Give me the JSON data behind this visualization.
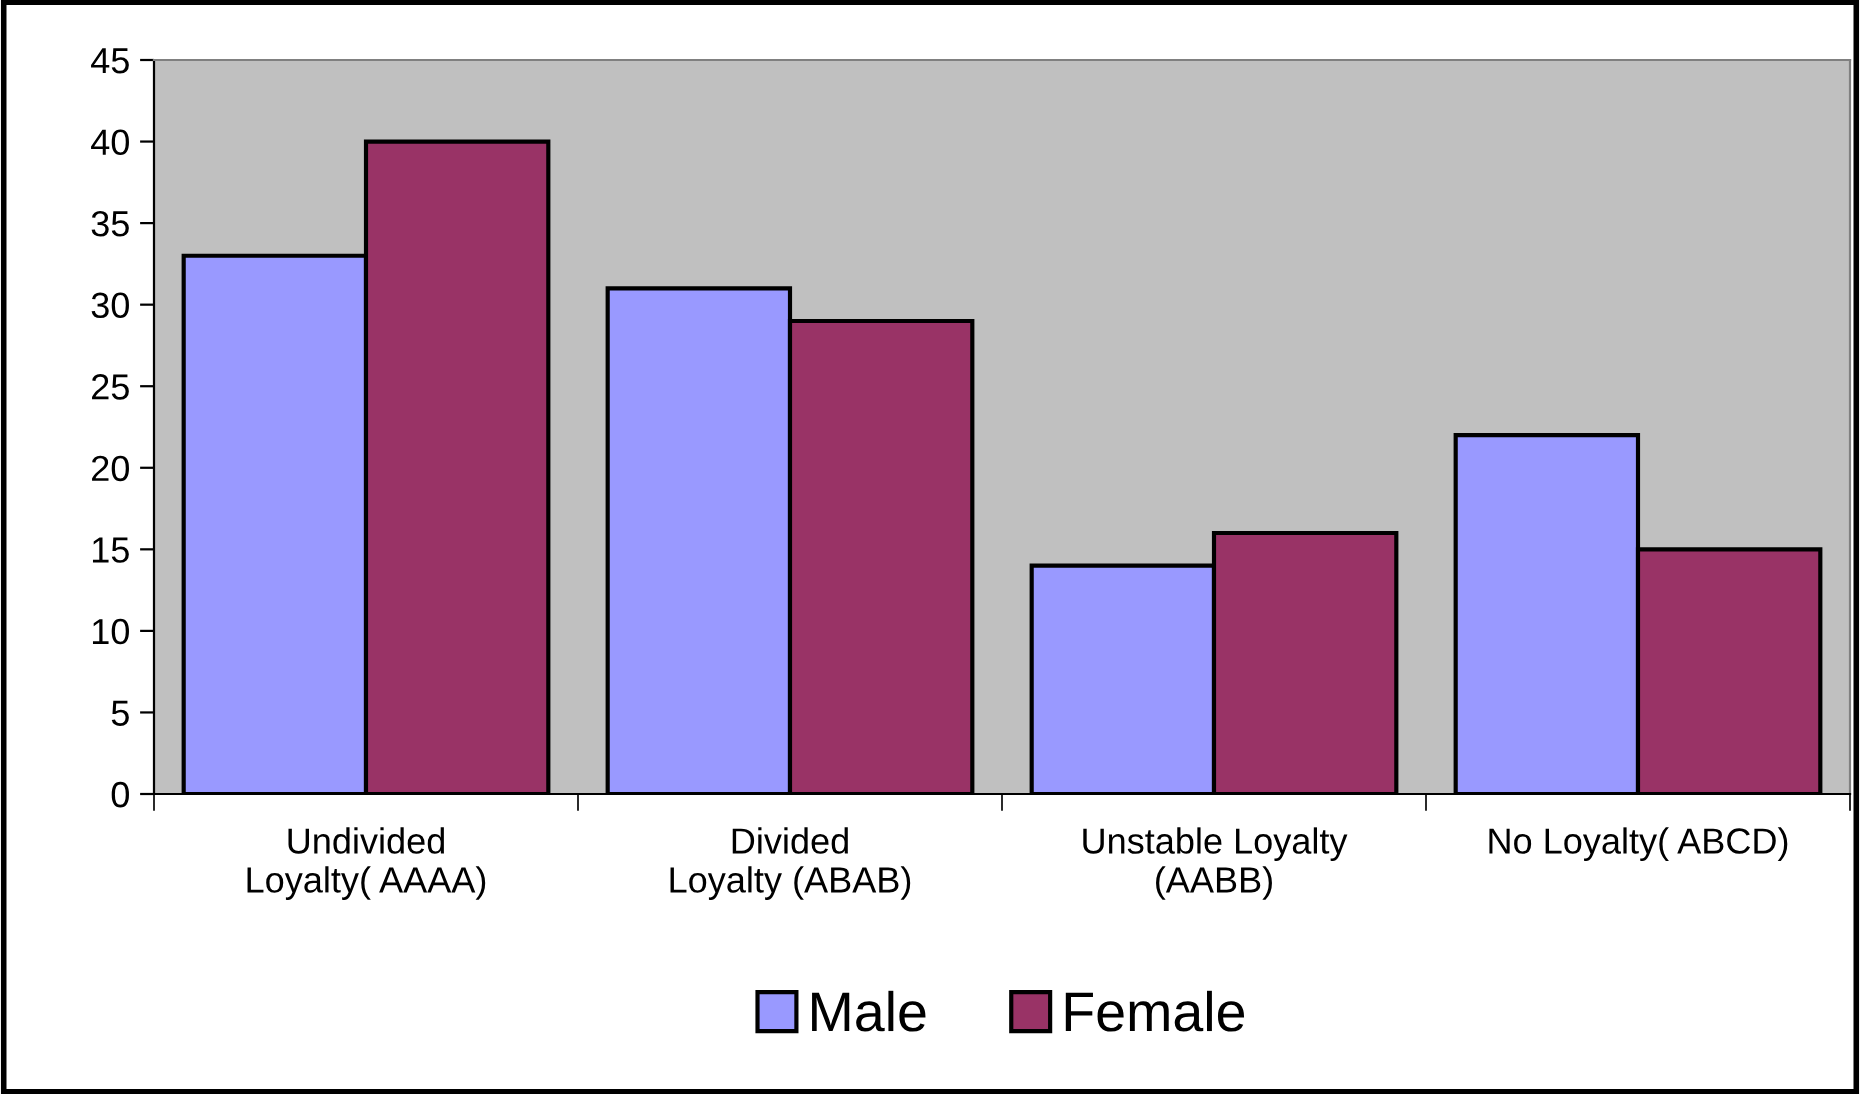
{
  "chart_data": {
    "type": "bar",
    "categories": [
      "Undivided\nLoyalty( AAAA)",
      "Divided\nLoyalty (ABAB)",
      "Unstable Loyalty\n(AABB)",
      "No Loyalty( ABCD)"
    ],
    "series": [
      {
        "name": "Male",
        "color": "#9999ff",
        "values": [
          33,
          31,
          14,
          22
        ]
      },
      {
        "name": "Female",
        "color": "#993366",
        "values": [
          40,
          29,
          16,
          15
        ]
      }
    ],
    "ylim": [
      0,
      45
    ],
    "yticks": [
      0,
      5,
      10,
      15,
      20,
      25,
      30,
      35,
      40,
      45
    ],
    "grid": false,
    "legend": "bottom"
  }
}
